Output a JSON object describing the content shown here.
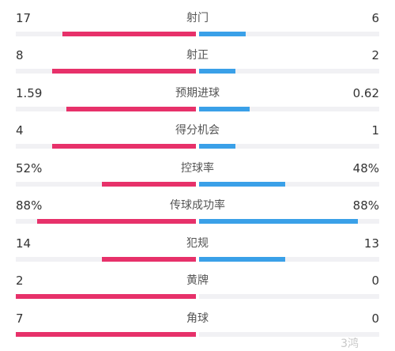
{
  "colors": {
    "home": "#e7316a",
    "away": "#3aa0e8",
    "track": "#f1f1f4"
  },
  "stats": [
    {
      "label": "射门",
      "home": "17",
      "away": "6",
      "home_frac": 0.74,
      "away_frac": 0.26
    },
    {
      "label": "射正",
      "home": "8",
      "away": "2",
      "home_frac": 0.8,
      "away_frac": 0.2
    },
    {
      "label": "预期进球",
      "home": "1.59",
      "away": "0.62",
      "home_frac": 0.72,
      "away_frac": 0.28
    },
    {
      "label": "得分机会",
      "home": "4",
      "away": "1",
      "home_frac": 0.8,
      "away_frac": 0.2
    },
    {
      "label": "控球率",
      "home": "52%",
      "away": "48%",
      "home_frac": 0.52,
      "away_frac": 0.48
    },
    {
      "label": "传球成功率",
      "home": "88%",
      "away": "88%",
      "home_frac": 0.88,
      "away_frac": 0.88
    },
    {
      "label": "犯规",
      "home": "14",
      "away": "13",
      "home_frac": 0.52,
      "away_frac": 0.48
    },
    {
      "label": "黄牌",
      "home": "2",
      "away": "0",
      "home_frac": 1.0,
      "away_frac": 0
    },
    {
      "label": "角球",
      "home": "7",
      "away": "0",
      "home_frac": 1.0,
      "away_frac": 0
    }
  ],
  "watermark": "3鸿"
}
